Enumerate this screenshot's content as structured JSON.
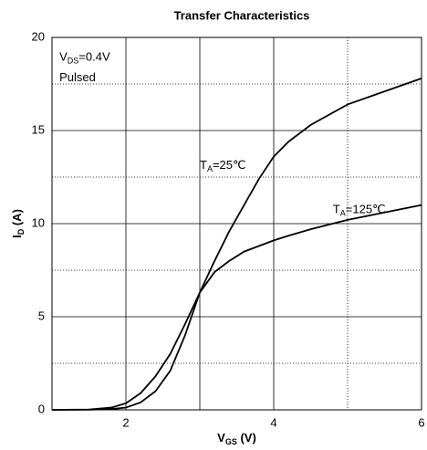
{
  "chart_data": {
    "type": "line",
    "title": "Transfer Characteristics",
    "xlabel": [
      "V",
      "GS",
      " (V)"
    ],
    "ylabel": [
      "I",
      "D",
      " (A)"
    ],
    "annotations": [
      {
        "parts": [
          "V",
          "DS",
          "=0.4V"
        ],
        "x": 1.1,
        "y": 18.9
      },
      {
        "parts": [
          "Pulsed"
        ],
        "x": 1.1,
        "y": 17.8
      },
      {
        "parts": [
          "T",
          "A",
          "=25℃"
        ],
        "x": 3.0,
        "y": 13.1
      },
      {
        "parts": [
          "T",
          "A",
          "=125℃"
        ],
        "x": 4.8,
        "y": 10.7
      }
    ],
    "x": [
      1,
      1.5,
      1.8,
      2,
      2.2,
      2.4,
      2.6,
      2.8,
      3.0,
      3.2,
      3.4,
      3.6,
      3.8,
      4.0,
      4.2,
      4.5,
      5,
      5.5,
      6
    ],
    "series": [
      {
        "name": "TA=25℃",
        "color": "#000000",
        "values": [
          0,
          0.02,
          0.12,
          0.35,
          0.9,
          1.8,
          3.0,
          4.6,
          6.3,
          8.0,
          9.6,
          11.0,
          12.4,
          13.6,
          14.4,
          15.3,
          16.4,
          17.1,
          17.8
        ]
      },
      {
        "name": "TA=125℃",
        "color": "#000000",
        "values": [
          0,
          0.005,
          0.04,
          0.12,
          0.4,
          1.0,
          2.1,
          4.0,
          6.3,
          7.4,
          8.0,
          8.5,
          8.8,
          9.1,
          9.35,
          9.7,
          10.2,
          10.6,
          11.0
        ]
      }
    ],
    "xlim": [
      1,
      6
    ],
    "ylim": [
      0,
      20
    ],
    "xticks": [
      2,
      4,
      6
    ],
    "yticks": [
      0,
      5,
      10,
      15,
      20
    ],
    "xgrid_solid": [
      3
    ],
    "xgrid_dotted": [
      5
    ],
    "ygrid_dotted": [
      2.5,
      7.5,
      12.5,
      17.5
    ],
    "grid": true
  }
}
